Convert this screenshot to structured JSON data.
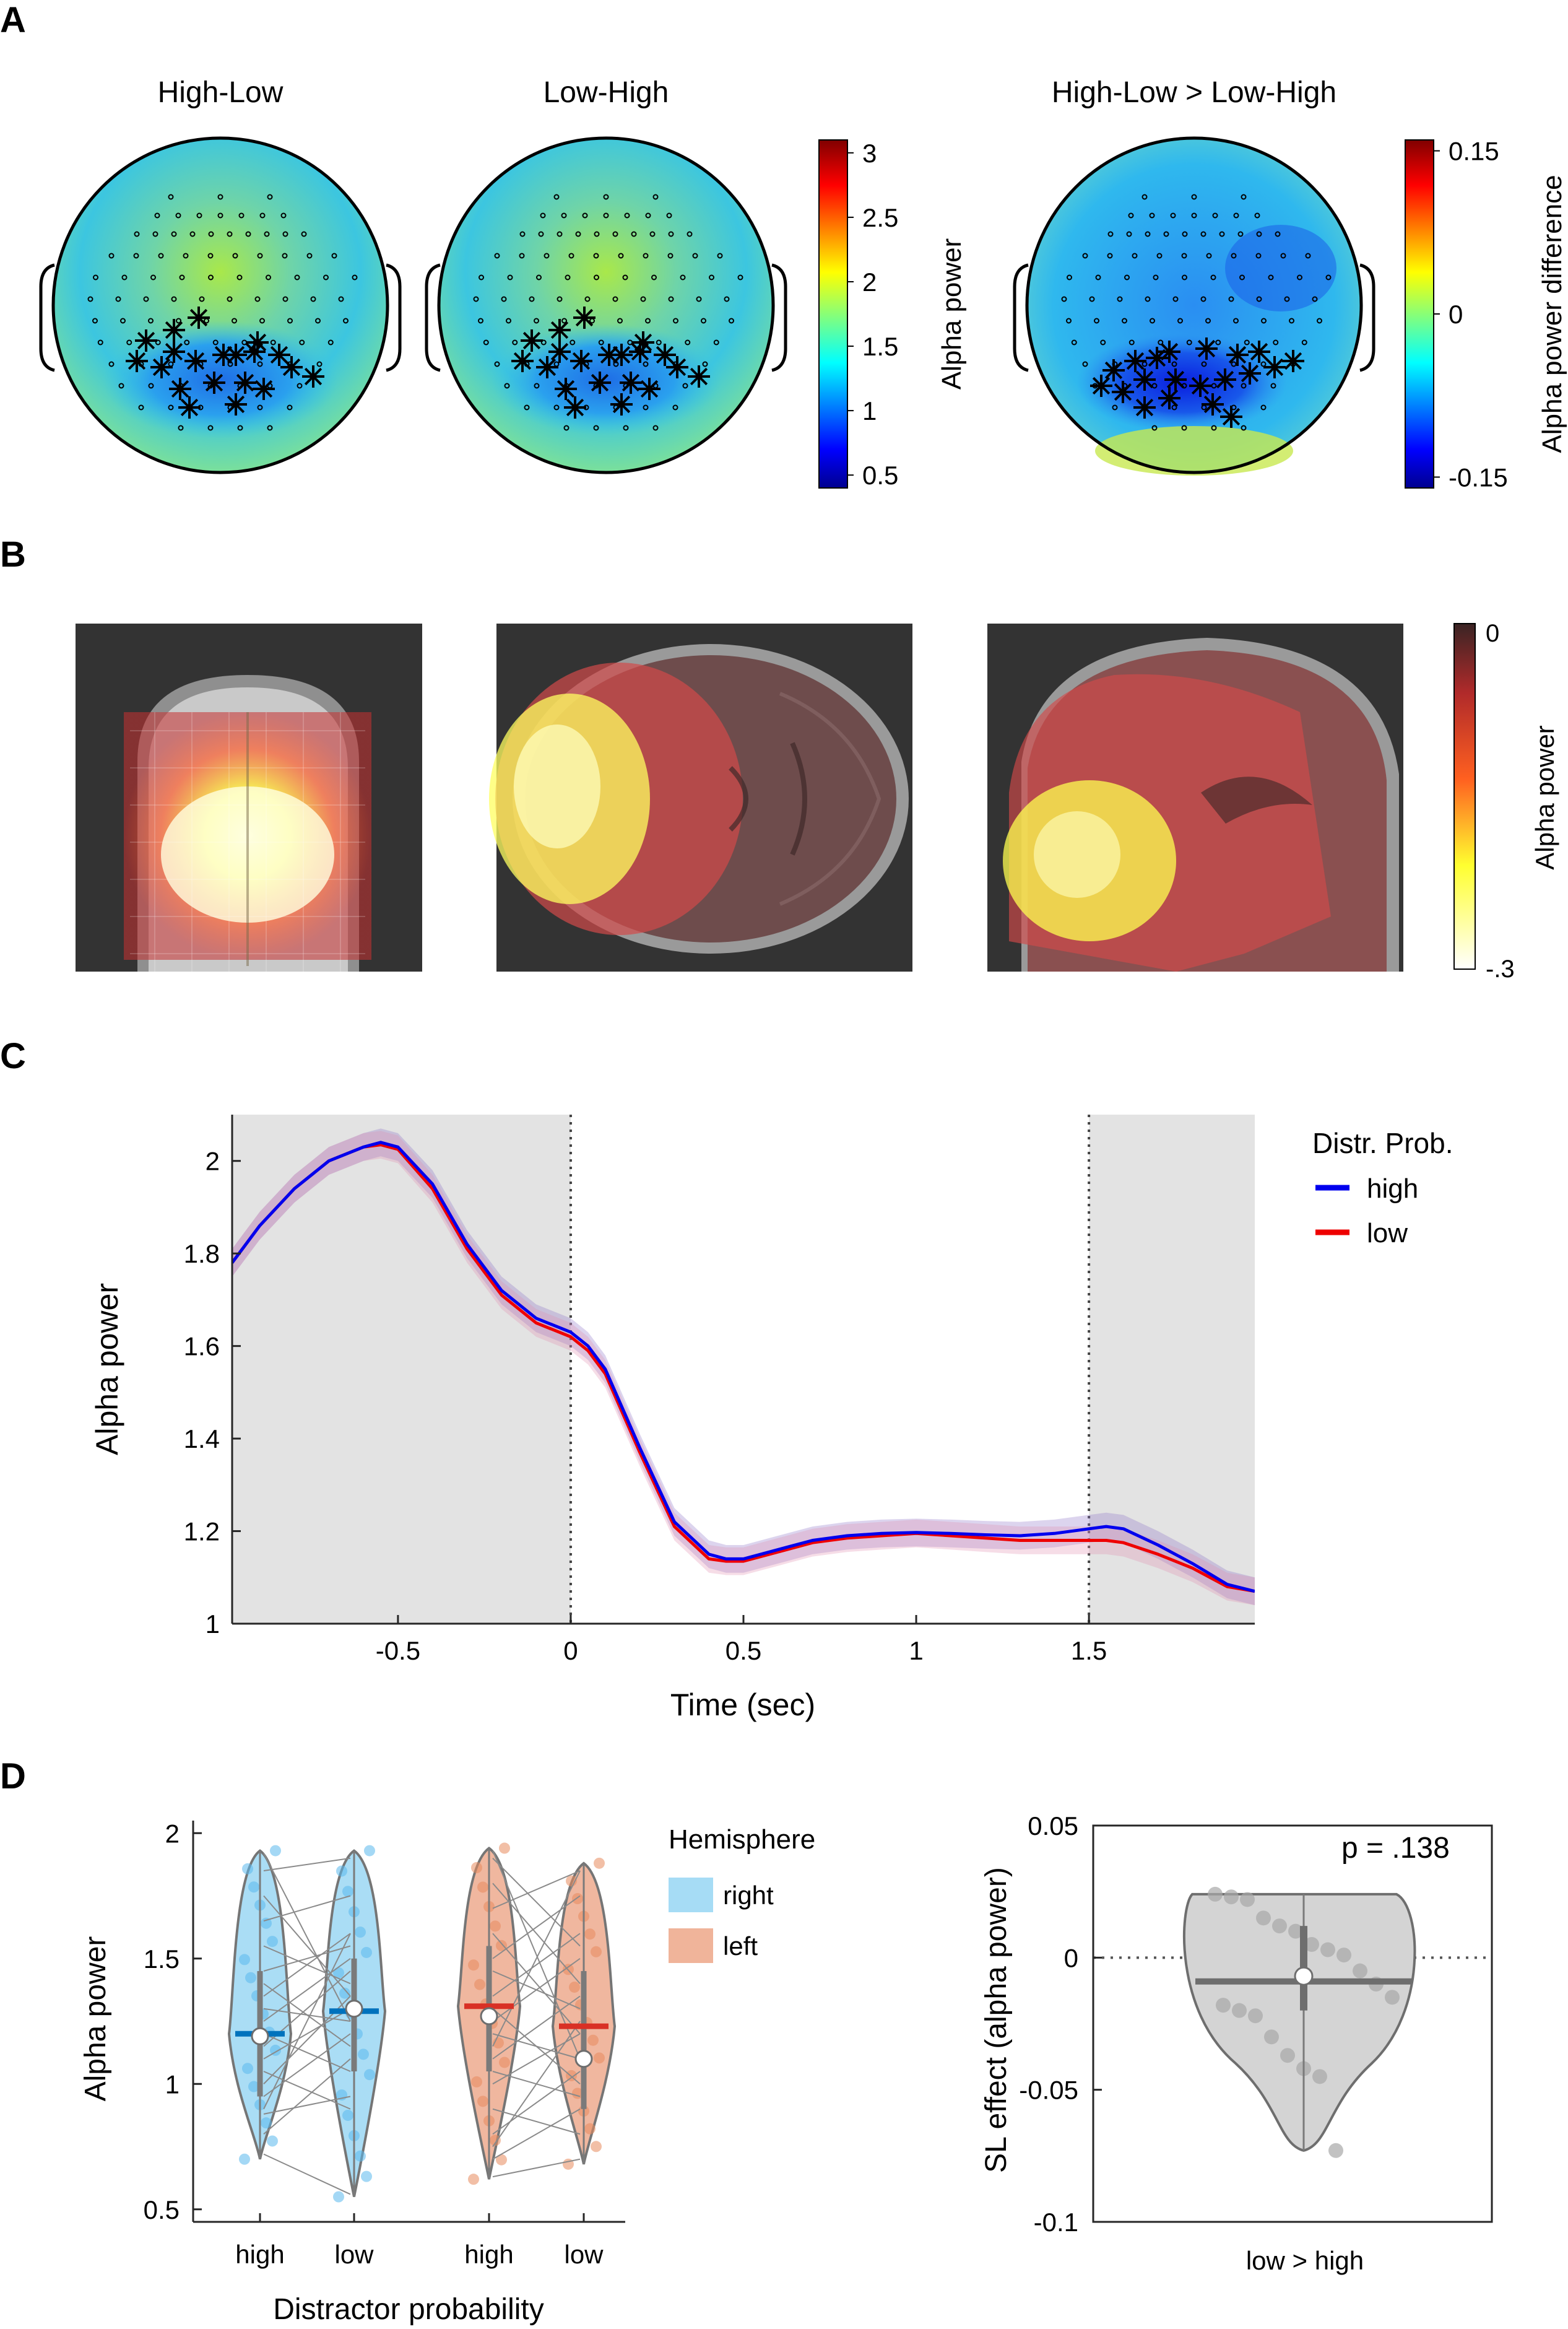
{
  "panels": {
    "A": {
      "letter": "A",
      "maps": [
        {
          "title": "High-Low"
        },
        {
          "title": "Low-High"
        },
        {
          "title": "High-Low > Low-High"
        }
      ],
      "colorbar1": {
        "label": "Alpha power",
        "ticks": [
          "3",
          "2.5",
          "2",
          "1.5",
          "1",
          "0.5"
        ],
        "range": [
          0.4,
          3.1
        ]
      },
      "colorbar2": {
        "label": "Alpha power difference",
        "ticks": [
          "0.15",
          "0",
          "-0.15"
        ],
        "range": [
          -0.16,
          0.16
        ]
      }
    },
    "B": {
      "letter": "B",
      "colorbar": {
        "label": "Alpha power",
        "ticks": [
          "0",
          "-.3"
        ]
      }
    },
    "C": {
      "letter": "C",
      "legend_title": "Distr. Prob.",
      "xlabel": "Time (sec)",
      "ylabel": "Alpha power",
      "xticks": [
        "-0.5",
        "0",
        "0.5",
        "1",
        "1.5"
      ],
      "yticks": [
        "1",
        "1.2",
        "1.4",
        "1.6",
        "1.8",
        "2"
      ]
    },
    "D": {
      "letter": "D",
      "left": {
        "ylabel": "Alpha power",
        "xlabel": "Distractor probability",
        "legend_title": "Hemisphere",
        "xticklabels": [
          "high",
          "low",
          "high",
          "low"
        ],
        "yticks": [
          "0.5",
          "1",
          "1.5",
          "2"
        ]
      },
      "right": {
        "ylabel": "SL effect (alpha power)",
        "xticklabel": "low > high",
        "annotation": "p = .138",
        "yticks": [
          "-0.1",
          "-0.05",
          "0",
          "0.05"
        ]
      }
    }
  },
  "chart_data": [
    {
      "type": "line",
      "panel": "C",
      "xlim": [
        -0.98,
        1.98
      ],
      "ylim": [
        1,
        2.1
      ],
      "shaded_windows": [
        [
          -0.98,
          0
        ],
        [
          1.5,
          1.98
        ]
      ],
      "vlines": [
        0,
        1.5
      ],
      "x": [
        -0.98,
        -0.9,
        -0.8,
        -0.7,
        -0.6,
        -0.55,
        -0.5,
        -0.4,
        -0.3,
        -0.2,
        -0.1,
        0,
        0.05,
        0.1,
        0.2,
        0.3,
        0.4,
        0.45,
        0.5,
        0.6,
        0.7,
        0.8,
        0.9,
        1.0,
        1.1,
        1.2,
        1.3,
        1.4,
        1.5,
        1.55,
        1.6,
        1.7,
        1.8,
        1.9,
        1.98
      ],
      "series": [
        {
          "name": "high",
          "color": "#0000ee",
          "values": [
            1.78,
            1.86,
            1.94,
            2.0,
            2.03,
            2.04,
            2.03,
            1.95,
            1.82,
            1.72,
            1.66,
            1.63,
            1.6,
            1.55,
            1.38,
            1.22,
            1.15,
            1.14,
            1.14,
            1.16,
            1.18,
            1.19,
            1.195,
            1.197,
            1.195,
            1.192,
            1.19,
            1.195,
            1.205,
            1.21,
            1.205,
            1.17,
            1.13,
            1.085,
            1.07
          ]
        },
        {
          "name": "low",
          "color": "#ee0000",
          "values": [
            1.78,
            1.86,
            1.94,
            2.0,
            2.03,
            2.035,
            2.025,
            1.94,
            1.81,
            1.71,
            1.65,
            1.62,
            1.59,
            1.54,
            1.37,
            1.21,
            1.14,
            1.135,
            1.135,
            1.155,
            1.175,
            1.185,
            1.19,
            1.195,
            1.19,
            1.185,
            1.18,
            1.18,
            1.18,
            1.18,
            1.175,
            1.15,
            1.12,
            1.08,
            1.07
          ]
        }
      ]
    },
    {
      "type": "violin",
      "panel": "D-left",
      "ylim": [
        0.45,
        2.05
      ],
      "categories": [
        "high",
        "low",
        "high",
        "low"
      ],
      "groups": [
        {
          "hemisphere": "right",
          "condition": "high",
          "color": "#a6dcf5",
          "median": 1.2,
          "mean": 1.19,
          "min": 0.7,
          "max": 1.93,
          "q1": 0.95,
          "q3": 1.45
        },
        {
          "hemisphere": "right",
          "condition": "low",
          "color": "#a6dcf5",
          "median": 1.29,
          "mean": 1.3,
          "min": 0.55,
          "max": 1.93,
          "q1": 1.05,
          "q3": 1.5
        },
        {
          "hemisphere": "left",
          "condition": "high",
          "color": "#f0b49a",
          "median": 1.31,
          "mean": 1.27,
          "min": 0.62,
          "max": 1.94,
          "q1": 1.05,
          "q3": 1.55
        },
        {
          "hemisphere": "left",
          "condition": "low",
          "color": "#f0b49a",
          "median": 1.23,
          "mean": 1.1,
          "min": 0.68,
          "max": 1.88,
          "q1": 0.9,
          "q3": 1.45
        }
      ],
      "pairs_right": [
        [
          0.72,
          0.56
        ],
        [
          0.8,
          1.1
        ],
        [
          0.88,
          0.95
        ],
        [
          0.95,
          1.2
        ],
        [
          1.0,
          1.35
        ],
        [
          1.05,
          0.9
        ],
        [
          1.1,
          1.3
        ],
        [
          1.15,
          1.45
        ],
        [
          1.2,
          1.05
        ],
        [
          1.25,
          1.5
        ],
        [
          1.3,
          1.25
        ],
        [
          1.35,
          1.6
        ],
        [
          1.4,
          1.15
        ],
        [
          1.45,
          1.55
        ],
        [
          1.55,
          1.4
        ],
        [
          1.65,
          1.75
        ],
        [
          1.75,
          1.35
        ],
        [
          1.85,
          1.9
        ],
        [
          1.92,
          1.25
        ],
        [
          0.9,
          1.6
        ]
      ],
      "pairs_left": [
        [
          0.63,
          0.7
        ],
        [
          0.7,
          0.9
        ],
        [
          0.8,
          1.05
        ],
        [
          0.9,
          0.8
        ],
        [
          1.0,
          1.2
        ],
        [
          1.05,
          0.95
        ],
        [
          1.1,
          1.35
        ],
        [
          1.2,
          1.1
        ],
        [
          1.25,
          1.5
        ],
        [
          1.3,
          1.0
        ],
        [
          1.35,
          1.6
        ],
        [
          1.45,
          1.3
        ],
        [
          1.5,
          1.75
        ],
        [
          1.6,
          1.2
        ],
        [
          1.7,
          1.85
        ],
        [
          1.8,
          1.4
        ],
        [
          1.9,
          1.55
        ],
        [
          1.93,
          1.1
        ],
        [
          1.15,
          1.85
        ],
        [
          0.75,
          1.25
        ]
      ],
      "legend": [
        {
          "name": "right",
          "color": "#a6dcf5"
        },
        {
          "name": "left",
          "color": "#f0b49a"
        }
      ]
    },
    {
      "type": "violin",
      "panel": "D-right",
      "ylim": [
        -0.1,
        0.05
      ],
      "category": "low > high",
      "median": -0.009,
      "mean": -0.007,
      "q1": -0.02,
      "q3": 0.012,
      "min": -0.073,
      "max": 0.024,
      "points": [
        0.024,
        0.023,
        0.022,
        0.015,
        0.012,
        0.01,
        0.005,
        0.003,
        0.001,
        -0.005,
        -0.01,
        -0.015,
        -0.018,
        -0.02,
        -0.022,
        -0.03,
        -0.037,
        -0.042,
        -0.045,
        -0.073
      ]
    }
  ]
}
